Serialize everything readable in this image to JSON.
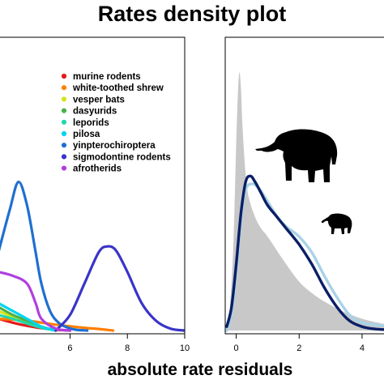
{
  "title": "Rates density plot",
  "xlabel": "absolute rate residuals",
  "chart_data": [
    {
      "type": "line",
      "panel": "left",
      "xlim": [
        3.5,
        10
      ],
      "ylim": [
        0,
        0.75
      ],
      "x_ticks": [
        6,
        8,
        10
      ],
      "grid": false,
      "legend_position": "top-right",
      "series": [
        {
          "name": "murine rodents",
          "color": "#e41a1c",
          "x": [
            3.5,
            4.0,
            4.5,
            5.0,
            5.5,
            6.0
          ],
          "y": [
            0.03,
            0.02,
            0.012,
            0.006,
            0.002,
            0.0
          ]
        },
        {
          "name": "white-toothed shrew",
          "color": "#ff7f00",
          "x": [
            3.5,
            4.5,
            5.5,
            6.5,
            7.0,
            7.5
          ],
          "y": [
            0.03,
            0.025,
            0.015,
            0.007,
            0.004,
            0.0
          ]
        },
        {
          "name": "vesper bats",
          "color": "#d7e41c",
          "x": [
            3.5,
            4.0,
            4.5,
            5.0,
            5.5
          ],
          "y": [
            0.05,
            0.035,
            0.02,
            0.008,
            0.0
          ]
        },
        {
          "name": "dasyurids",
          "color": "#4daf4a",
          "x": [
            3.5,
            4.0,
            4.5,
            5.0,
            5.5
          ],
          "y": [
            0.06,
            0.04,
            0.025,
            0.01,
            0.0
          ]
        },
        {
          "name": "leporids",
          "color": "#1fd8a8",
          "x": [
            3.5,
            4.0,
            4.5,
            5.0,
            5.5
          ],
          "y": [
            0.04,
            0.03,
            0.018,
            0.007,
            0.0
          ]
        },
        {
          "name": "pilosa",
          "color": "#00d5ee",
          "x": [
            3.5,
            4.0,
            4.5,
            5.0,
            5.5
          ],
          "y": [
            0.07,
            0.05,
            0.03,
            0.01,
            0.0
          ]
        },
        {
          "name": "yinpterochiroptera",
          "color": "#1f6fd1",
          "x": [
            3.5,
            3.9,
            4.2,
            4.5,
            4.8,
            5.0,
            5.3,
            5.6,
            5.9,
            6.2,
            6.6
          ],
          "y": [
            0.2,
            0.31,
            0.38,
            0.32,
            0.2,
            0.12,
            0.05,
            0.02,
            0.008,
            0.002,
            0.0
          ]
        },
        {
          "name": "sigmodontine rodents",
          "color": "#3a34c8",
          "x": [
            5.5,
            6.0,
            6.5,
            7.0,
            7.3,
            7.6,
            8.0,
            8.5,
            9.0,
            9.5,
            10.0
          ],
          "y": [
            0.0,
            0.04,
            0.12,
            0.2,
            0.215,
            0.205,
            0.15,
            0.07,
            0.025,
            0.005,
            0.0
          ]
        },
        {
          "name": "afrotherids",
          "color": "#b03fe0",
          "x": [
            3.5,
            4.0,
            4.5,
            4.8,
            5.0,
            5.5,
            6.0
          ],
          "y": [
            0.15,
            0.14,
            0.12,
            0.07,
            0.03,
            0.005,
            0.0
          ]
        }
      ]
    },
    {
      "type": "area",
      "panel": "right",
      "xlim": [
        -0.35,
        4.8
      ],
      "ylim": [
        0,
        0.75
      ],
      "x_ticks": [
        0,
        2,
        4
      ],
      "grid": false,
      "series": [
        {
          "color": "#c8c8c8",
          "fill": true,
          "x": [
            -0.25,
            -0.1,
            0.0,
            0.05,
            0.1,
            0.15,
            0.2,
            0.3,
            0.4,
            0.6,
            0.8,
            1.0,
            1.5,
            2.0,
            2.5,
            3.0,
            3.5,
            4.0,
            4.5,
            4.8
          ],
          "y": [
            0.0,
            0.2,
            0.48,
            0.6,
            0.66,
            0.62,
            0.52,
            0.4,
            0.34,
            0.29,
            0.26,
            0.24,
            0.18,
            0.125,
            0.09,
            0.065,
            0.045,
            0.03,
            0.02,
            0.015
          ]
        },
        {
          "color": "#a9d2e6",
          "fill": false,
          "x": [
            -0.3,
            -0.15,
            0.0,
            0.15,
            0.3,
            0.5,
            0.7,
            1.0,
            1.3,
            1.6,
            2.0,
            2.4,
            2.8,
            3.2,
            3.6,
            4.0,
            4.4,
            4.8
          ],
          "y": [
            0.0,
            0.04,
            0.15,
            0.28,
            0.36,
            0.375,
            0.365,
            0.33,
            0.29,
            0.265,
            0.24,
            0.2,
            0.14,
            0.085,
            0.04,
            0.02,
            0.015,
            0.012
          ]
        },
        {
          "color": "#0b1f66",
          "fill": false,
          "x": [
            -0.3,
            -0.15,
            0.0,
            0.15,
            0.3,
            0.45,
            0.6,
            0.8,
            1.0,
            1.3,
            1.6,
            2.0,
            2.4,
            2.8,
            3.2,
            3.6,
            4.0,
            4.4,
            4.8
          ],
          "y": [
            0.01,
            0.06,
            0.17,
            0.3,
            0.38,
            0.395,
            0.38,
            0.35,
            0.32,
            0.29,
            0.26,
            0.22,
            0.17,
            0.11,
            0.06,
            0.025,
            0.01,
            0.004,
            0.002
          ]
        }
      ]
    }
  ],
  "legend": [
    {
      "label": "murine rodents",
      "color": "#e41a1c"
    },
    {
      "label": "white-toothed shrew",
      "color": "#ff7f00"
    },
    {
      "label": "vesper bats",
      "color": "#d7e41c"
    },
    {
      "label": "dasyurids",
      "color": "#4daf4a"
    },
    {
      "label": "leporids",
      "color": "#1fd8a8"
    },
    {
      "label": "pilosa",
      "color": "#00d5ee"
    },
    {
      "label": "yinpterochiroptera",
      "color": "#1f6fd1"
    },
    {
      "label": "sigmodontine rodents",
      "color": "#3a34c8"
    },
    {
      "label": "afrotherids",
      "color": "#b03fe0"
    }
  ],
  "icons": [
    "elephant-icon",
    "elephant-shrew-icon"
  ]
}
